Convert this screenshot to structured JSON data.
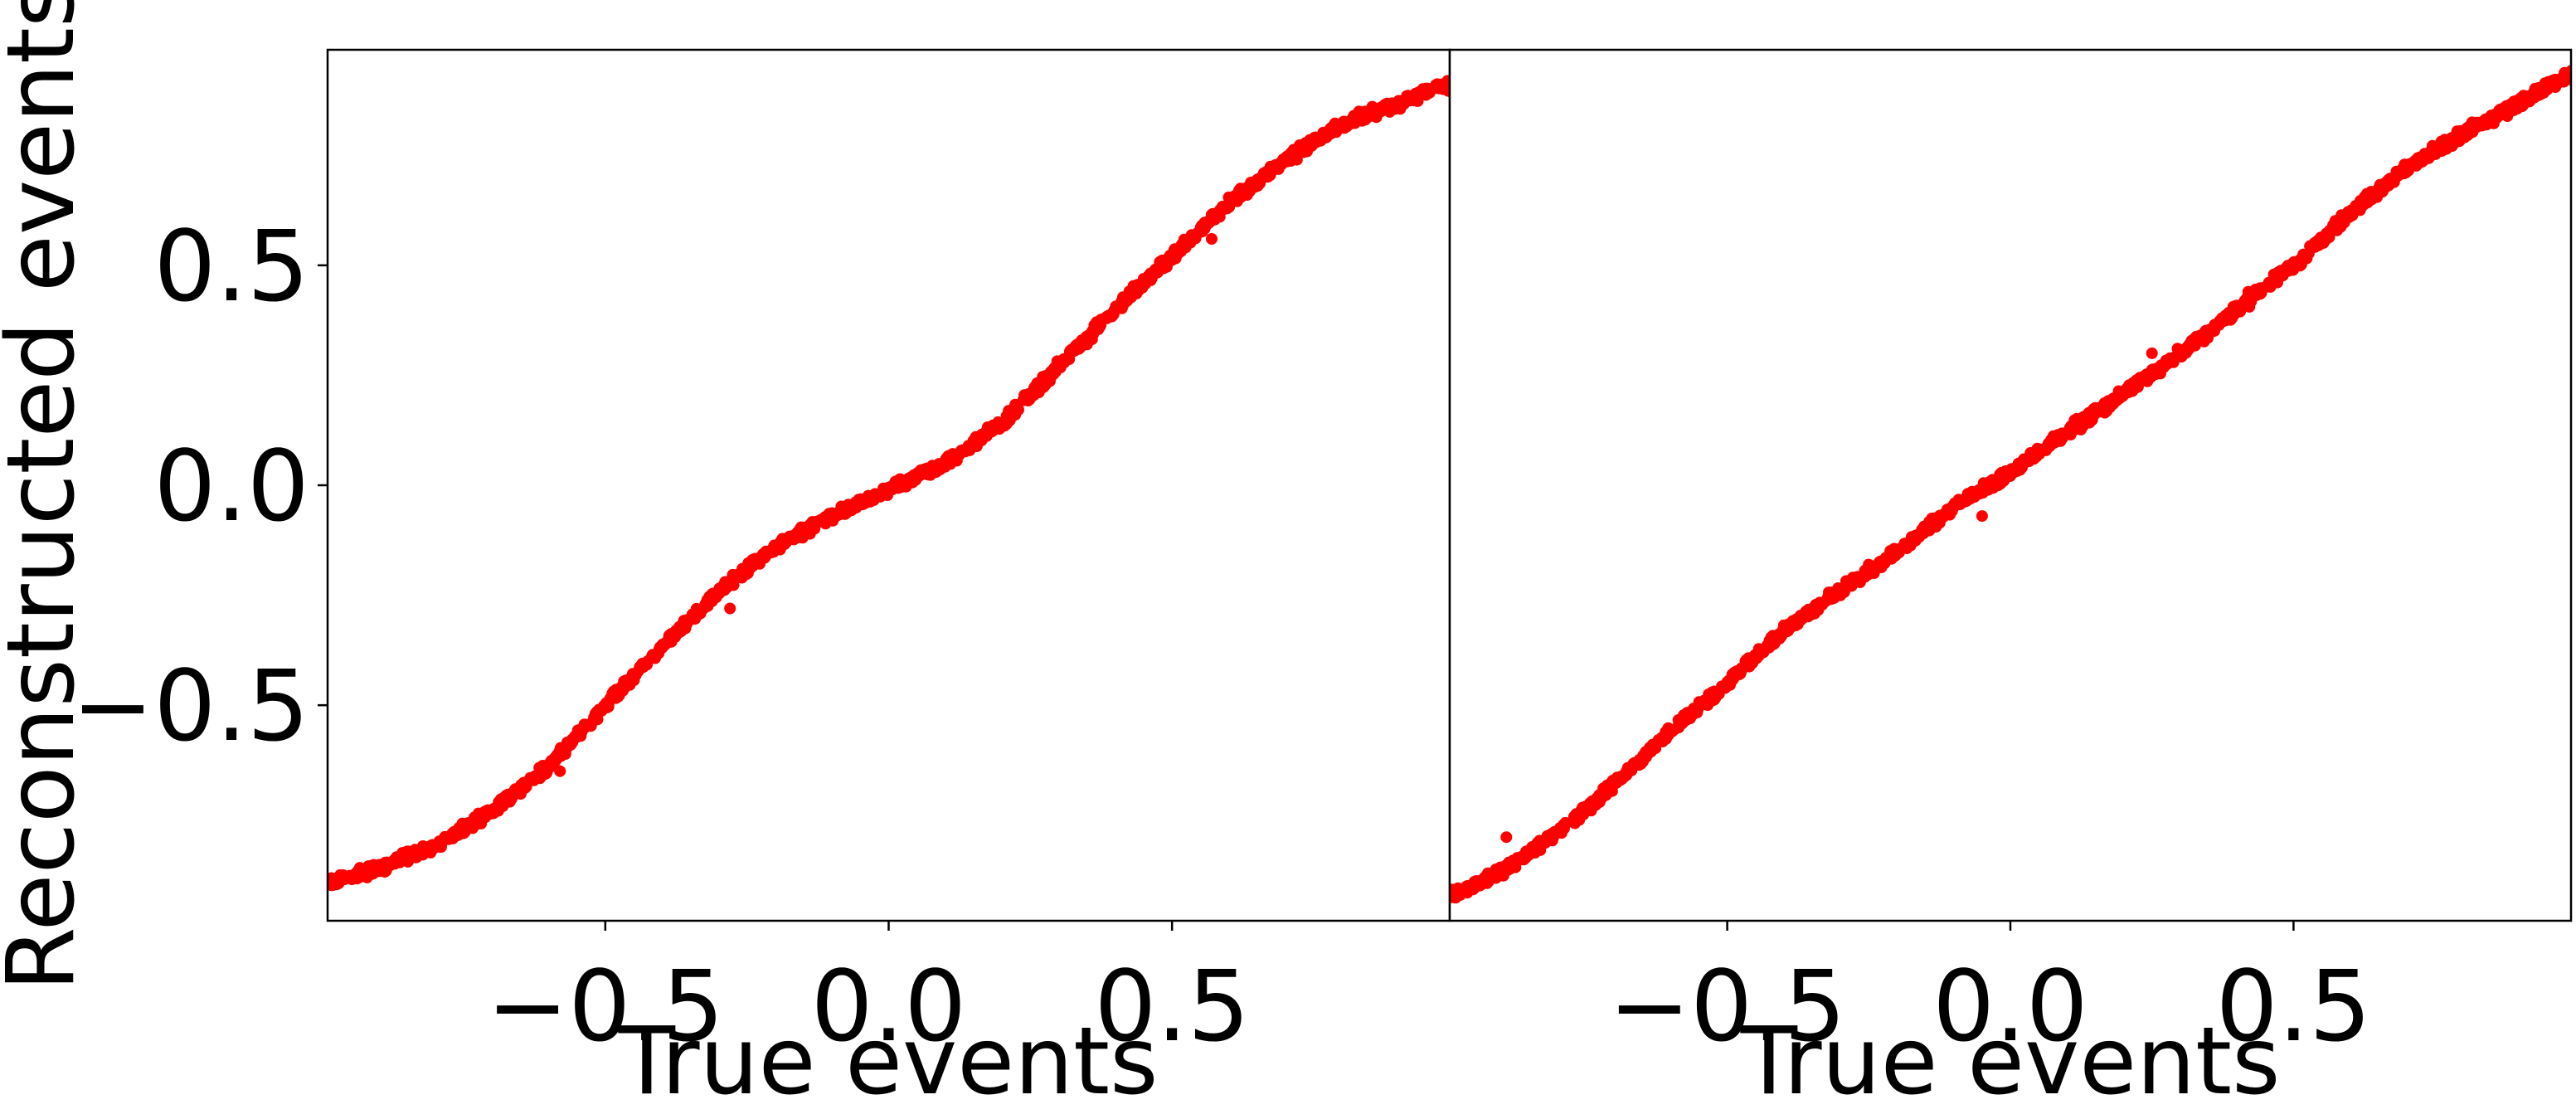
{
  "chart_data": [
    {
      "type": "scatter",
      "panel": "left",
      "xlabel": "True events",
      "ylabel": "Reconstructed events",
      "xlim": [
        -0.99,
        0.99
      ],
      "ylim": [
        -0.99,
        0.99
      ],
      "xticks": [
        -0.5,
        0.0,
        0.5
      ],
      "xtick_labels": [
        "−0.5",
        "0.0",
        "0.5"
      ],
      "yticks": [
        -0.5,
        0.0,
        0.5
      ],
      "ytick_labels": [
        "−0.5",
        "0.0",
        "0.5"
      ],
      "grid": false,
      "marker_color": "#ff0000",
      "points": [
        [
          -0.98,
          -0.9
        ],
        [
          -0.9,
          -0.87
        ],
        [
          -0.8,
          -0.82
        ],
        [
          -0.7,
          -0.74
        ],
        [
          -0.6,
          -0.64
        ],
        [
          -0.5,
          -0.5
        ],
        [
          -0.4,
          -0.37
        ],
        [
          -0.3,
          -0.24
        ],
        [
          -0.2,
          -0.14
        ],
        [
          -0.1,
          -0.07
        ],
        [
          0.0,
          -0.01
        ],
        [
          0.1,
          0.05
        ],
        [
          0.2,
          0.14
        ],
        [
          0.3,
          0.27
        ],
        [
          0.4,
          0.4
        ],
        [
          0.5,
          0.52
        ],
        [
          0.6,
          0.64
        ],
        [
          0.7,
          0.74
        ],
        [
          0.8,
          0.82
        ],
        [
          0.9,
          0.87
        ],
        [
          0.98,
          0.91
        ]
      ],
      "outliers": [
        [
          -0.58,
          -0.65
        ],
        [
          -0.28,
          -0.28
        ],
        [
          0.35,
          0.32
        ],
        [
          0.57,
          0.56
        ]
      ]
    },
    {
      "type": "scatter",
      "panel": "right",
      "xlabel": "True events",
      "ylabel": "",
      "xlim": [
        -0.99,
        0.99
      ],
      "ylim": [
        -0.99,
        0.99
      ],
      "xticks": [
        -0.5,
        0.0,
        0.5
      ],
      "xtick_labels": [
        "−0.5",
        "0.0",
        "0.5"
      ],
      "yticks": [],
      "ytick_labels": [],
      "grid": false,
      "marker_color": "#ff0000",
      "points": [
        [
          -0.98,
          -0.93
        ],
        [
          -0.9,
          -0.88
        ],
        [
          -0.8,
          -0.79
        ],
        [
          -0.7,
          -0.68
        ],
        [
          -0.6,
          -0.56
        ],
        [
          -0.5,
          -0.45
        ],
        [
          -0.4,
          -0.33
        ],
        [
          -0.3,
          -0.24
        ],
        [
          -0.2,
          -0.15
        ],
        [
          -0.1,
          -0.05
        ],
        [
          0.0,
          0.03
        ],
        [
          0.1,
          0.12
        ],
        [
          0.2,
          0.21
        ],
        [
          0.3,
          0.3
        ],
        [
          0.4,
          0.4
        ],
        [
          0.5,
          0.5
        ],
        [
          0.6,
          0.62
        ],
        [
          0.7,
          0.72
        ],
        [
          0.8,
          0.8
        ],
        [
          0.9,
          0.87
        ],
        [
          0.98,
          0.93
        ]
      ],
      "outliers": [
        [
          -0.89,
          -0.8
        ],
        [
          -0.05,
          -0.07
        ],
        [
          0.25,
          0.3
        ],
        [
          0.42,
          0.44
        ]
      ]
    }
  ]
}
